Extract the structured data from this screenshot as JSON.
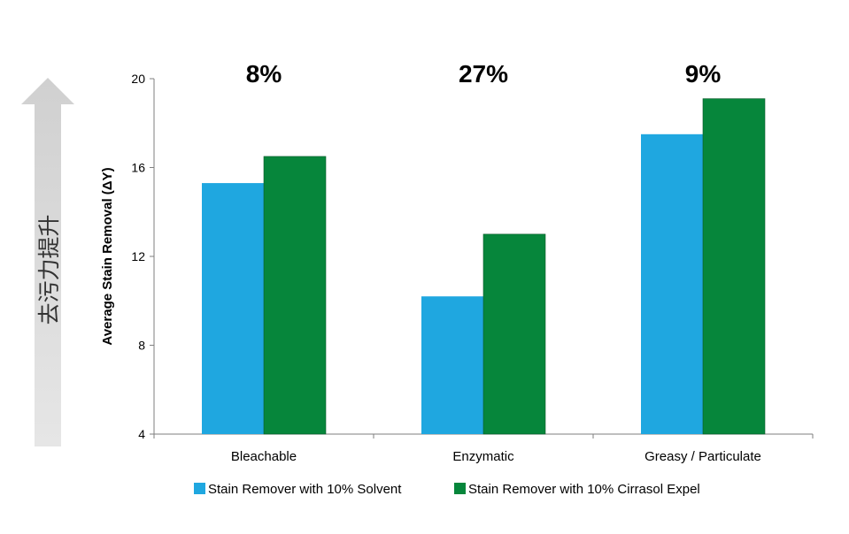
{
  "side_arrow_label": "去污力提升",
  "chart_data": {
    "type": "bar",
    "categories": [
      "Bleachable",
      "Enzymatic",
      "Greasy / Particulate"
    ],
    "series": [
      {
        "name": "Stain Remover with 10% Solvent",
        "color": "#1fa7e0",
        "values": [
          15.3,
          10.2,
          17.5
        ]
      },
      {
        "name": "Stain Remover with 10% Cirrasol Expel",
        "color": "#06863b",
        "values": [
          16.5,
          13.0,
          19.1
        ]
      }
    ],
    "annotations": [
      "8%",
      "27%",
      "9%"
    ],
    "ylabel": "Average Stain Removal (ΔY)",
    "xlabel": "",
    "ylim": [
      4,
      20
    ],
    "yticks": [
      4,
      8,
      12,
      16,
      20
    ],
    "ytick_labels": [
      "4",
      "8",
      "12",
      "16",
      "20"
    ],
    "grid": false,
    "legend_position": "bottom"
  }
}
